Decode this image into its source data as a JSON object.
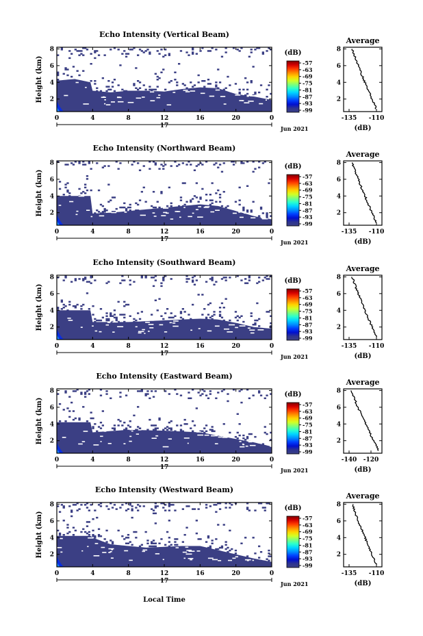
{
  "figure": {
    "xlabel": "Local Time",
    "date_label": "Jun 2021",
    "day_label": "17",
    "colorbar_unit": "(dB)",
    "colorbar_ticks": [
      "-57",
      "-63",
      "-69",
      "-75",
      "-81",
      "-87",
      "-93",
      "-99"
    ],
    "colorbar_colors": [
      "#7f0000",
      "#d40000",
      "#ff3a00",
      "#ff8c00",
      "#ffd400",
      "#d2ff25",
      "#7dff7a",
      "#2bffcc",
      "#00d4ff",
      "#0090ff",
      "#0040ff",
      "#0010d0",
      "#2d3391",
      "#3b3f84"
    ],
    "fill_color": "#3b3f84",
    "avg_title": "Average",
    "avg_xlabel": "(dB)"
  },
  "chart_data": [
    {
      "type": "heatmap",
      "title": "Echo Intensity (Vertical Beam)",
      "ylabel": "Height (km)",
      "x_ticks": [
        "0",
        "4",
        "8",
        "12",
        "16",
        "20",
        "0"
      ],
      "y_ticks": [
        "2",
        "4",
        "6",
        "8"
      ],
      "xlim": [
        0,
        24
      ],
      "ylim": [
        0.5,
        8.2
      ],
      "echo_top_km": [
        [
          0,
          4.2
        ],
        [
          2,
          4.4
        ],
        [
          3.8,
          4.0
        ],
        [
          4,
          3.0
        ],
        [
          6,
          2.8
        ],
        [
          8,
          3.0
        ],
        [
          10,
          3.0
        ],
        [
          12,
          2.9
        ],
        [
          14,
          3.2
        ],
        [
          16,
          3.4
        ],
        [
          18,
          3.3
        ],
        [
          20,
          2.6
        ],
        [
          22,
          2.3
        ],
        [
          24,
          1.9
        ]
      ],
      "scatter_top_km": 8.0,
      "average": {
        "x_ticks": [
          "-135",
          "-110"
        ],
        "xlim": [
          -140,
          -105
        ],
        "y_ticks": [
          "2",
          "4",
          "6",
          "8"
        ],
        "x_start": -132,
        "x_end": -110
      }
    },
    {
      "type": "heatmap",
      "title": "Echo Intensity (Northward Beam)",
      "ylabel": "Height (km)",
      "x_ticks": [
        "0",
        "4",
        "8",
        "12",
        "16",
        "20",
        "0"
      ],
      "y_ticks": [
        "2",
        "4",
        "6",
        "8"
      ],
      "xlim": [
        0,
        24
      ],
      "ylim": [
        0.5,
        8.2
      ],
      "echo_top_km": [
        [
          0,
          4.0
        ],
        [
          3.8,
          4.0
        ],
        [
          4,
          1.9
        ],
        [
          6,
          2.0
        ],
        [
          8,
          2.2
        ],
        [
          12,
          2.6
        ],
        [
          16,
          3.0
        ],
        [
          18,
          2.8
        ],
        [
          20,
          2.2
        ],
        [
          22,
          1.6
        ],
        [
          24,
          1.2
        ]
      ],
      "scatter_top_km": 8.0,
      "average": {
        "x_ticks": [
          "-135",
          "-110"
        ],
        "xlim": [
          -140,
          -105
        ],
        "y_ticks": [
          "2",
          "4",
          "6",
          "8"
        ],
        "x_start": -132,
        "x_end": -110
      }
    },
    {
      "type": "heatmap",
      "title": "Echo Intensity (Southward Beam)",
      "ylabel": "Height (km)",
      "x_ticks": [
        "0",
        "4",
        "8",
        "12",
        "16",
        "20",
        "0"
      ],
      "y_ticks": [
        "2",
        "4",
        "6",
        "8"
      ],
      "xlim": [
        0,
        24
      ],
      "ylim": [
        0.5,
        8.2
      ],
      "echo_top_km": [
        [
          0,
          4.0
        ],
        [
          3.8,
          4.0
        ],
        [
          4,
          2.6
        ],
        [
          8,
          2.6
        ],
        [
          12,
          2.8
        ],
        [
          16,
          3.0
        ],
        [
          18,
          2.9
        ],
        [
          20,
          2.5
        ],
        [
          22,
          2.0
        ],
        [
          24,
          1.8
        ]
      ],
      "scatter_top_km": 8.0,
      "average": {
        "x_ticks": [
          "-135",
          "-110"
        ],
        "xlim": [
          -140,
          -105
        ],
        "y_ticks": [
          "2",
          "4",
          "6",
          "8"
        ],
        "x_start": -132,
        "x_end": -110
      }
    },
    {
      "type": "heatmap",
      "title": "Echo Intensity (Eastward Beam)",
      "ylabel": "Height (km)",
      "x_ticks": [
        "0",
        "4",
        "8",
        "12",
        "16",
        "20",
        "0"
      ],
      "y_ticks": [
        "2",
        "4",
        "6",
        "8"
      ],
      "xlim": [
        0,
        24
      ],
      "ylim": [
        0.5,
        8.2
      ],
      "echo_top_km": [
        [
          0,
          4.2
        ],
        [
          3.8,
          4.2
        ],
        [
          4,
          3.0
        ],
        [
          8,
          3.3
        ],
        [
          12,
          3.2
        ],
        [
          16,
          3.0
        ],
        [
          18,
          2.6
        ],
        [
          20,
          2.2
        ],
        [
          22,
          1.8
        ],
        [
          24,
          1.3
        ]
      ],
      "scatter_top_km": 8.0,
      "average": {
        "x_ticks": [
          "-140",
          "-120"
        ],
        "xlim": [
          -145,
          -110
        ],
        "y_ticks": [
          "2",
          "4",
          "6",
          "8"
        ],
        "x_start": -138,
        "x_end": -113
      }
    },
    {
      "type": "heatmap",
      "title": "Echo Intensity (Westward Beam)",
      "ylabel": "Height (km)",
      "x_ticks": [
        "0",
        "4",
        "8",
        "12",
        "16",
        "20",
        "0"
      ],
      "y_ticks": [
        "2",
        "4",
        "6",
        "8"
      ],
      "xlim": [
        0,
        24
      ],
      "ylim": [
        0.5,
        8.2
      ],
      "echo_top_km": [
        [
          0,
          4.2
        ],
        [
          3.8,
          4.2
        ],
        [
          4,
          4.0
        ],
        [
          6,
          3.2
        ],
        [
          10,
          2.8
        ],
        [
          14,
          3.0
        ],
        [
          16,
          3.0
        ],
        [
          18,
          2.5
        ],
        [
          20,
          2.0
        ],
        [
          22,
          1.5
        ],
        [
          24,
          1.1
        ]
      ],
      "scatter_top_km": 8.0,
      "average": {
        "x_ticks": [
          "-135",
          "-110"
        ],
        "xlim": [
          -140,
          -105
        ],
        "y_ticks": [
          "2",
          "4",
          "6",
          "8"
        ],
        "x_start": -132,
        "x_end": -110
      }
    }
  ]
}
